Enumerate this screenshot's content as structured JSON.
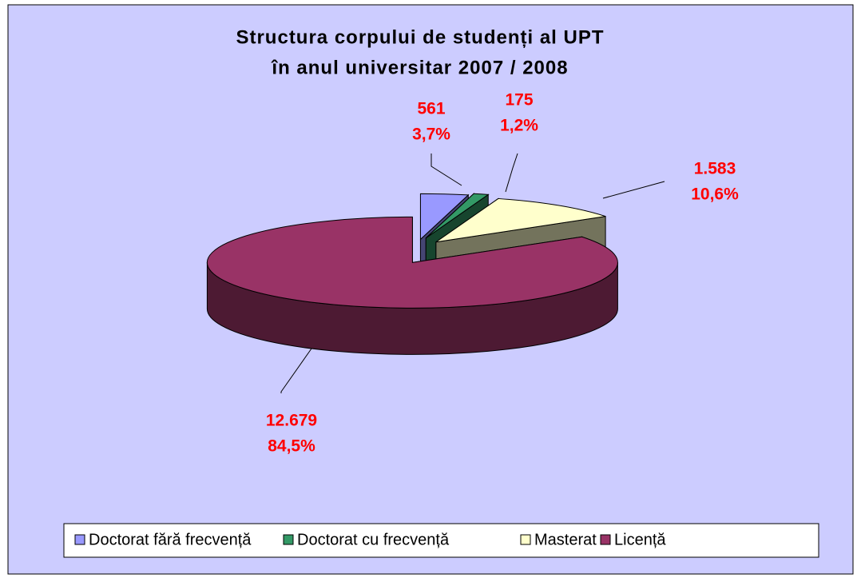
{
  "chart_data": {
    "type": "pie",
    "title": [
      "Structura corpului de studenți al UPT",
      "în anul universitar 2007 / 2008"
    ],
    "categories": [
      "Doctorat fără frecvență",
      "Doctorat cu frecvență",
      "Masterat",
      "Licență"
    ],
    "values": [
      561,
      175,
      1583,
      12679
    ],
    "value_labels": [
      "561",
      "175",
      "1.583",
      "12.679"
    ],
    "percents": [
      3.7,
      1.2,
      10.6,
      84.5
    ],
    "percent_labels": [
      "3,7%",
      "1,2%",
      "10,6%",
      "84,5%"
    ],
    "colors": [
      "#9999ff",
      "#339966",
      "#ffffcc",
      "#993366"
    ],
    "legend": "bottom"
  }
}
